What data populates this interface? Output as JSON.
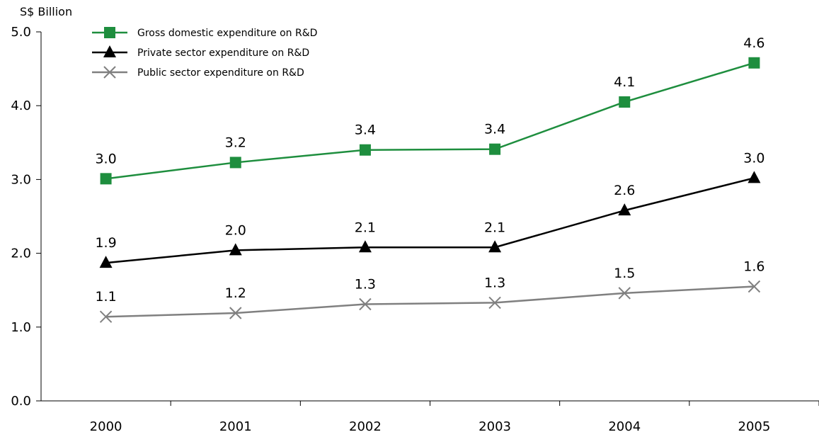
{
  "chart_data": {
    "type": "line",
    "ylabel": "S$ Billion",
    "xlabel": "",
    "ylim": [
      0,
      5
    ],
    "y_ticks": [
      "0.0",
      "1.0",
      "2.0",
      "3.0",
      "4.0",
      "5.0"
    ],
    "categories": [
      "2000",
      "2001",
      "2002",
      "2003",
      "2004",
      "2005"
    ],
    "grid": false,
    "legend_position": "top-left",
    "series": [
      {
        "name": "Gross domestic expenditure on R&D",
        "values": [
          3.01,
          3.23,
          3.4,
          3.41,
          4.05,
          4.58
        ],
        "labels": [
          "3.0",
          "3.2",
          "3.4",
          "3.4",
          "4.1",
          "4.6"
        ],
        "color": "#1e8e3e",
        "marker": "square"
      },
      {
        "name": "Private sector expenditure on R&D",
        "values": [
          1.87,
          2.04,
          2.08,
          2.08,
          2.58,
          3.02
        ],
        "labels": [
          "1.9",
          "2.0",
          "2.1",
          "2.1",
          "2.6",
          "3.0"
        ],
        "color": "#000000",
        "marker": "triangle"
      },
      {
        "name": "Public sector expenditure on R&D",
        "values": [
          1.14,
          1.19,
          1.31,
          1.33,
          1.46,
          1.55
        ],
        "labels": [
          "1.1",
          "1.2",
          "1.3",
          "1.3",
          "1.5",
          "1.6"
        ],
        "color": "#808080",
        "marker": "cross"
      }
    ]
  }
}
